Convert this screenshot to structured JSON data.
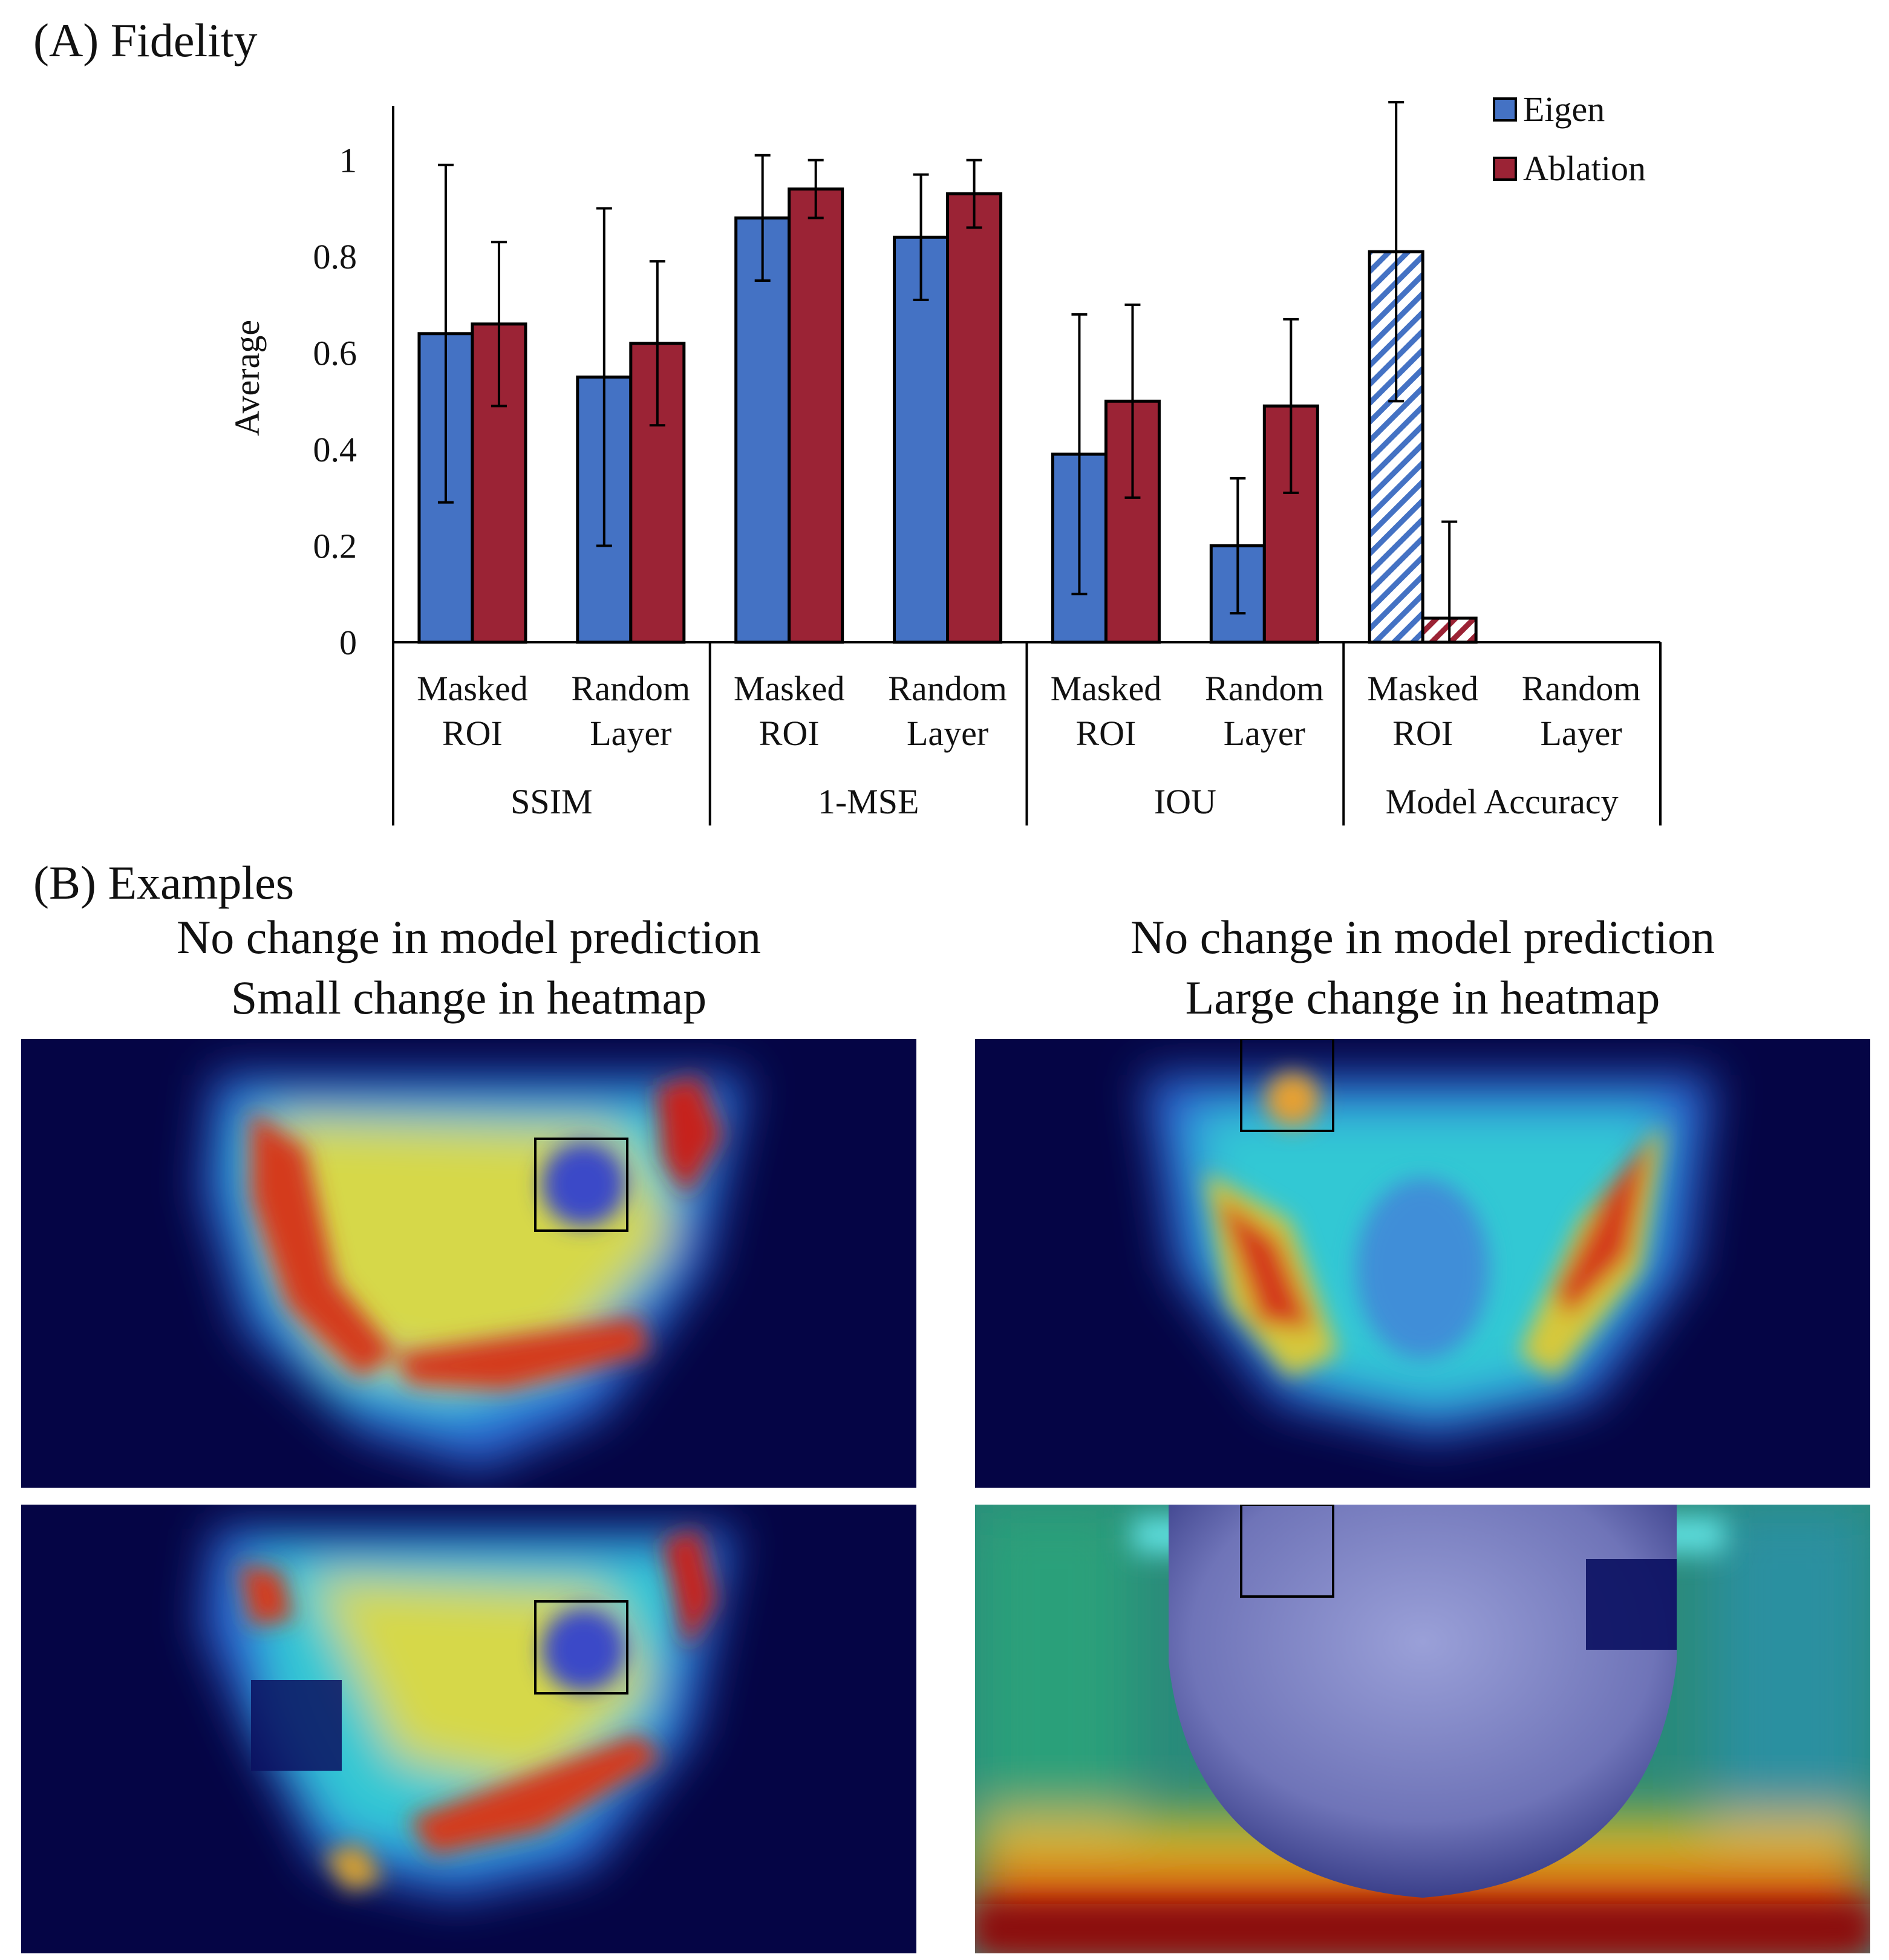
{
  "panel_a": {
    "title": "(A) Fidelity"
  },
  "panel_b": {
    "title": "(B) Examples",
    "left_caption": [
      "No change in model prediction",
      "Small change in heatmap"
    ],
    "right_caption": [
      "No change in model prediction",
      "Large change in heatmap"
    ]
  },
  "chart_data": {
    "type": "bar",
    "ylabel": "Average",
    "ylim": [
      0,
      1.1
    ],
    "yticks": [
      "0",
      "0.2",
      "0.4",
      "0.6",
      "0.8",
      "1"
    ],
    "ytick_values": [
      0,
      0.2,
      0.4,
      0.6,
      0.8,
      1.0
    ],
    "legend_position": "top-right",
    "categories": [
      {
        "label1": "Masked",
        "label2": "ROI",
        "group": "SSIM"
      },
      {
        "label1": "Random",
        "label2": "Layer",
        "group": "SSIM"
      },
      {
        "label1": "Masked",
        "label2": "ROI",
        "group": "1-MSE"
      },
      {
        "label1": "Random",
        "label2": "Layer",
        "group": "1-MSE"
      },
      {
        "label1": "Masked",
        "label2": "ROI",
        "group": "IOU"
      },
      {
        "label1": "Random",
        "label2": "Layer",
        "group": "IOU"
      },
      {
        "label1": "Masked",
        "label2": "ROI",
        "group": "Model Accuracy"
      },
      {
        "label1": "Random",
        "label2": "Layer",
        "group": "Model Accuracy"
      }
    ],
    "groups": [
      "SSIM",
      "1-MSE",
      "IOU",
      "Model Accuracy"
    ],
    "series": [
      {
        "name": "Eigen",
        "color": "#4472C4",
        "values": [
          0.64,
          0.55,
          0.88,
          0.84,
          0.39,
          0.2,
          0.81,
          0
        ],
        "error": [
          0.35,
          0.35,
          0.13,
          0.13,
          0.29,
          0.14,
          0.31,
          0
        ],
        "hatched": [
          false,
          false,
          false,
          false,
          false,
          false,
          true,
          false
        ]
      },
      {
        "name": "Ablation",
        "color": "#9B2335",
        "values": [
          0.66,
          0.62,
          0.94,
          0.93,
          0.5,
          0.49,
          0.05,
          0
        ],
        "error": [
          0.17,
          0.17,
          0.06,
          0.07,
          0.2,
          0.18,
          0.2,
          0
        ],
        "hatched": [
          false,
          false,
          false,
          false,
          false,
          false,
          true,
          false
        ]
      }
    ]
  }
}
